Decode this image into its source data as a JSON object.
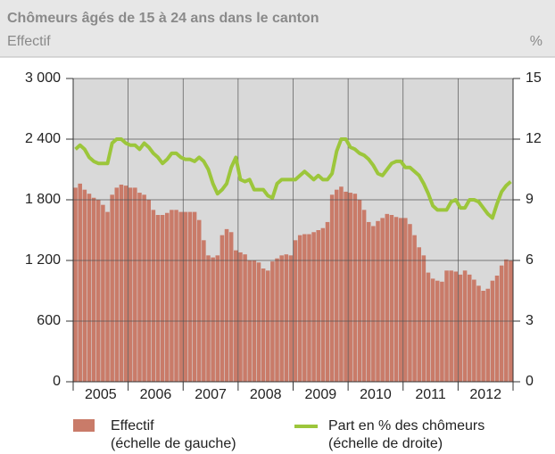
{
  "chart_data": {
    "type": "bar_line",
    "title": "Chômeurs âgés de 15 à 24 ans dans le canton",
    "subtitle": "Effectif",
    "y2_unit": "%",
    "categories": [
      "2005",
      null,
      null,
      null,
      null,
      null,
      null,
      null,
      null,
      null,
      null,
      null,
      "2006",
      null,
      null,
      null,
      null,
      null,
      null,
      null,
      null,
      null,
      null,
      null,
      "2007",
      null,
      null,
      null,
      null,
      null,
      null,
      null,
      null,
      null,
      null,
      null,
      "2008",
      null,
      null,
      null,
      null,
      null,
      null,
      null,
      null,
      null,
      null,
      null,
      "2009",
      null,
      null,
      null,
      null,
      null,
      null,
      null,
      null,
      null,
      null,
      null,
      "2010",
      null,
      null,
      null,
      null,
      null,
      null,
      null,
      null,
      null,
      null,
      null,
      "2011",
      null,
      null,
      null,
      null,
      null,
      null,
      null,
      null,
      null,
      null,
      null,
      "2012",
      null,
      null,
      null,
      null,
      null,
      null,
      null,
      null,
      null,
      null,
      null
    ],
    "series": [
      {
        "name": "Effectif",
        "note": "(échelle de gauche)",
        "color": "#c97b69",
        "axis": "y",
        "values": [
          1920,
          1960,
          1900,
          1860,
          1820,
          1800,
          1750,
          1680,
          1850,
          1920,
          1950,
          1940,
          1920,
          1920,
          1870,
          1850,
          1800,
          1700,
          1650,
          1650,
          1670,
          1700,
          1700,
          1680,
          1680,
          1680,
          1680,
          1600,
          1400,
          1250,
          1230,
          1250,
          1450,
          1510,
          1480,
          1300,
          1280,
          1260,
          1200,
          1200,
          1180,
          1120,
          1100,
          1190,
          1220,
          1250,
          1260,
          1250,
          1400,
          1450,
          1460,
          1460,
          1480,
          1500,
          1520,
          1580,
          1850,
          1900,
          1930,
          1880,
          1870,
          1860,
          1800,
          1700,
          1580,
          1540,
          1590,
          1620,
          1660,
          1650,
          1630,
          1620,
          1620,
          1560,
          1450,
          1330,
          1250,
          1080,
          1020,
          1000,
          990,
          1100,
          1100,
          1090,
          1060,
          1100,
          1060,
          1010,
          950,
          900,
          920,
          1000,
          1050,
          1150,
          1210,
          1200
        ]
      },
      {
        "name": "Part en % des chômeurs",
        "note": "(échelle de droite)",
        "color": "#9cc63b",
        "axis": "y2",
        "values": [
          11.5,
          11.7,
          11.5,
          11.1,
          10.9,
          10.8,
          10.8,
          10.8,
          11.8,
          12.0,
          12.0,
          11.8,
          11.7,
          11.7,
          11.5,
          11.8,
          11.6,
          11.3,
          11.1,
          10.8,
          11.0,
          11.3,
          11.3,
          11.1,
          11.0,
          11.0,
          10.9,
          11.1,
          10.9,
          10.5,
          9.8,
          9.3,
          9.5,
          9.8,
          10.6,
          11.1,
          10.0,
          9.9,
          10.0,
          9.5,
          9.5,
          9.5,
          9.2,
          9.1,
          9.8,
          10.0,
          10.0,
          10.0,
          10.0,
          10.2,
          10.4,
          10.2,
          10.0,
          10.2,
          10.0,
          10.0,
          10.3,
          11.4,
          12.0,
          12.0,
          11.6,
          11.5,
          11.3,
          11.2,
          11.0,
          10.7,
          10.3,
          10.2,
          10.5,
          10.8,
          10.9,
          10.9,
          10.6,
          10.6,
          10.4,
          10.2,
          9.8,
          9.3,
          8.7,
          8.5,
          8.5,
          8.5,
          8.9,
          9.0,
          8.6,
          8.6,
          9.0,
          9.0,
          8.9,
          8.6,
          8.3,
          8.1,
          8.8,
          9.4,
          9.7,
          9.9
        ]
      }
    ],
    "ylim": [
      0,
      3000
    ],
    "yticks": [
      0,
      600,
      {
        "value": 1200,
        "label": "1 200"
      },
      {
        "value": 1800,
        "label": "1 800"
      },
      {
        "value": 2400,
        "label": "2 400"
      },
      {
        "value": 3000,
        "label": "3 000"
      }
    ],
    "y2lim": [
      0,
      15
    ],
    "y2ticks": [
      0,
      3,
      6,
      9,
      12,
      15
    ],
    "grid": true
  }
}
